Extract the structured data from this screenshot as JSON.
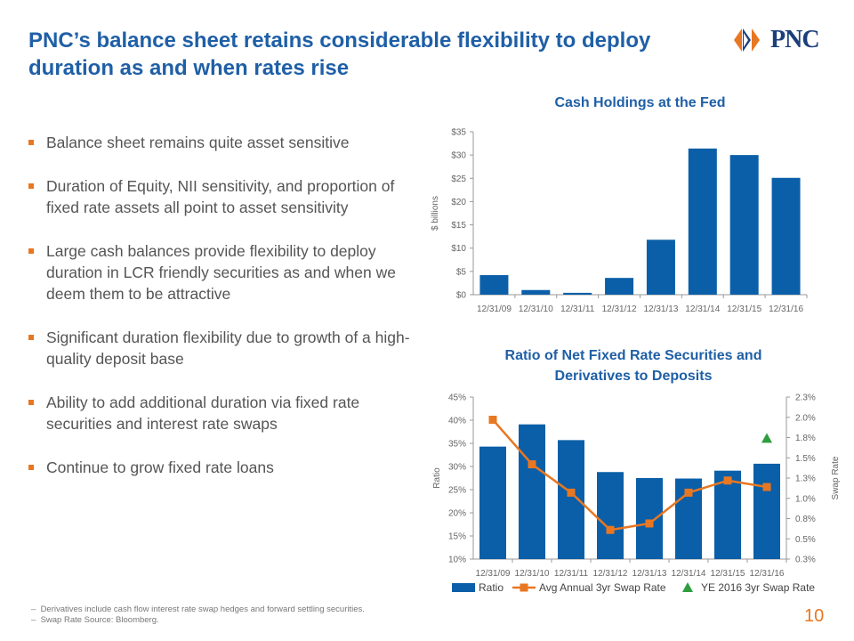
{
  "page": {
    "title": "PNC’s balance sheet retains considerable flexibility to deploy duration as and when rates rise",
    "logo_text": "PNC",
    "page_number": "10"
  },
  "colors": {
    "title_blue": "#1f5fa6",
    "bar_blue": "#0a5fa8",
    "orange": "#e87722",
    "green": "#2e9e3e"
  },
  "bullets": [
    "Balance sheet remains quite asset sensitive",
    "Duration of Equity, NII sensitivity, and proportion of fixed rate assets all point to asset sensitivity",
    "Large cash balances provide flexibility to deploy duration in LCR friendly securities as and when we deem them to be attractive",
    "Significant duration flexibility due to growth of a high-quality deposit base",
    "Ability to add additional duration via fixed rate securities and interest rate swaps",
    "Continue to grow fixed rate loans"
  ],
  "footnotes": [
    "Derivatives include cash flow interest rate swap hedges and forward settling securities.",
    "Swap Rate Source: Bloomberg."
  ],
  "chart_data": [
    {
      "type": "bar",
      "title": "Cash Holdings at the Fed",
      "ylabel": "$ billions",
      "xlabel": "",
      "categories": [
        "12/31/09",
        "12/31/10",
        "12/31/11",
        "12/31/12",
        "12/31/13",
        "12/31/14",
        "12/31/15",
        "12/31/16"
      ],
      "values": [
        4.2,
        1.0,
        0.4,
        3.6,
        11.8,
        31.4,
        30.0,
        25.1
      ],
      "ylim": [
        0,
        35
      ],
      "yticks": [
        "$0",
        "$5",
        "$10",
        "$15",
        "$20",
        "$25",
        "$30",
        "$35"
      ],
      "grid": false
    },
    {
      "type": "bar+line",
      "title": "Ratio of Net Fixed Rate Securities and Derivatives to Deposits",
      "ylabel": "Ratio",
      "y2label": "Swap Rate",
      "categories": [
        "12/31/09",
        "12/31/10",
        "12/31/11",
        "12/31/12",
        "12/31/13",
        "12/31/14",
        "12/31/15",
        "12/31/16"
      ],
      "ylim": [
        10,
        45
      ],
      "y2lim": [
        0.25,
        2.25
      ],
      "yticks": [
        "10%",
        "15%",
        "20%",
        "25%",
        "30%",
        "35%",
        "40%",
        "45%"
      ],
      "y2ticks": [
        "0.3%",
        "0.5%",
        "0.8%",
        "1.0%",
        "1.3%",
        "1.5%",
        "1.8%",
        "2.0%",
        "2.3%"
      ],
      "series": [
        {
          "name": "Ratio",
          "kind": "bar",
          "axis": "left",
          "values": [
            34.3,
            39.1,
            35.7,
            28.8,
            27.5,
            27.4,
            29.1,
            30.6
          ]
        },
        {
          "name": "Avg Annual 3yr Swap Rate",
          "kind": "line",
          "axis": "right",
          "values": [
            1.97,
            1.42,
            1.07,
            0.61,
            0.69,
            1.07,
            1.22,
            1.14
          ]
        },
        {
          "name": "YE 2016 3yr Swap Rate",
          "kind": "marker",
          "axis": "right",
          "points": [
            {
              "category": "12/31/16",
              "value": 1.74
            }
          ]
        }
      ],
      "legend": "bottom"
    }
  ]
}
